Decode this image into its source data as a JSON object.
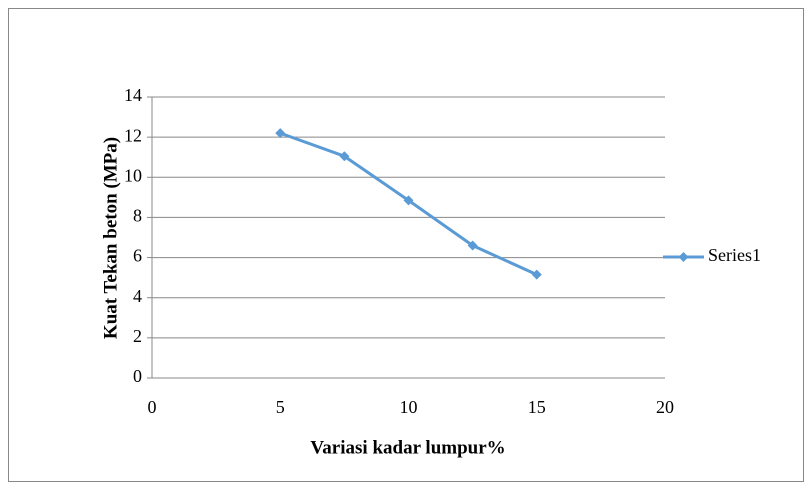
{
  "chart_data": {
    "type": "line",
    "x_label": "Variasi kadar lumpur%",
    "y_label": "Kuat Tekan beton (MPa)",
    "x": [
      5,
      7.5,
      10,
      12.5,
      15
    ],
    "series": [
      {
        "name": "Series1",
        "color": "#5b9bd5",
        "values": [
          12.2,
          11.05,
          8.85,
          6.6,
          5.15
        ]
      }
    ],
    "xlim": [
      0,
      20
    ],
    "xticks": [
      0,
      5,
      10,
      15,
      20
    ],
    "ylim": [
      0,
      14
    ],
    "yticks": [
      0,
      2,
      4,
      6,
      8,
      10,
      12,
      14
    ],
    "grid": true,
    "legend": "right"
  }
}
